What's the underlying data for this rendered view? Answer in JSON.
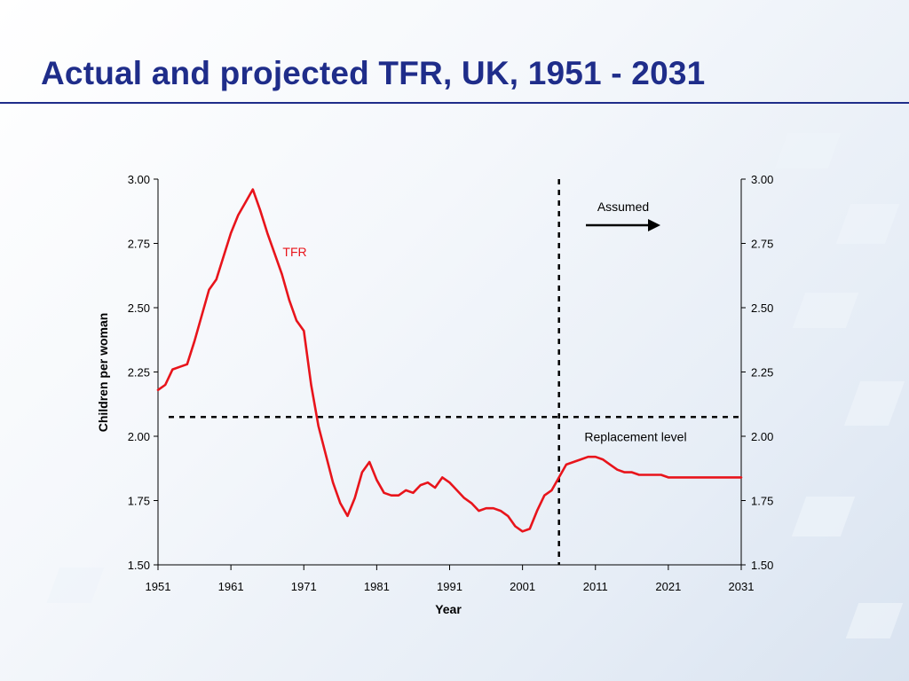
{
  "slide": {
    "title": "Actual and projected TFR, UK, 1951 - 2031"
  },
  "chart_data": {
    "type": "line",
    "xlabel": "Year",
    "ylabel": "Children per woman",
    "xlim": [
      1951,
      2031
    ],
    "ylim": [
      1.5,
      3.0
    ],
    "x_ticks": [
      1951,
      1961,
      1971,
      1981,
      1991,
      2001,
      2011,
      2021,
      2031
    ],
    "y_ticks": [
      "1.50",
      "1.75",
      "2.00",
      "2.25",
      "2.50",
      "2.75",
      "3.00"
    ],
    "secondary_y_axis": true,
    "grid": false,
    "series": [
      {
        "name": "TFR",
        "color": "#e8141b",
        "x": [
          1951,
          1952,
          1953,
          1954,
          1955,
          1956,
          1957,
          1958,
          1959,
          1960,
          1961,
          1962,
          1963,
          1964,
          1965,
          1966,
          1967,
          1968,
          1969,
          1970,
          1971,
          1972,
          1973,
          1974,
          1975,
          1976,
          1977,
          1978,
          1979,
          1980,
          1981,
          1982,
          1983,
          1984,
          1985,
          1986,
          1987,
          1988,
          1989,
          1990,
          1991,
          1992,
          1993,
          1994,
          1995,
          1996,
          1997,
          1998,
          1999,
          2000,
          2001,
          2002,
          2003,
          2004,
          2005,
          2006,
          2007,
          2008,
          2009,
          2010,
          2011,
          2012,
          2013,
          2014,
          2015,
          2016,
          2017,
          2018,
          2019,
          2020,
          2021,
          2022,
          2023,
          2024,
          2025,
          2026,
          2027,
          2028,
          2029,
          2030,
          2031
        ],
        "values": [
          2.18,
          2.2,
          2.26,
          2.27,
          2.28,
          2.37,
          2.47,
          2.57,
          2.61,
          2.7,
          2.79,
          2.86,
          2.91,
          2.96,
          2.88,
          2.79,
          2.71,
          2.63,
          2.53,
          2.45,
          2.41,
          2.2,
          2.04,
          1.93,
          1.82,
          1.74,
          1.69,
          1.76,
          1.86,
          1.9,
          1.83,
          1.78,
          1.77,
          1.77,
          1.79,
          1.78,
          1.81,
          1.82,
          1.8,
          1.84,
          1.82,
          1.79,
          1.76,
          1.74,
          1.71,
          1.72,
          1.72,
          1.71,
          1.69,
          1.65,
          1.63,
          1.64,
          1.71,
          1.77,
          1.79,
          1.84,
          1.89,
          1.9,
          1.91,
          1.92,
          1.92,
          1.91,
          1.89,
          1.87,
          1.86,
          1.86,
          1.85,
          1.85,
          1.85,
          1.85,
          1.84,
          1.84,
          1.84,
          1.84,
          1.84,
          1.84,
          1.84,
          1.84,
          1.84,
          1.84,
          1.84
        ]
      }
    ],
    "reference_lines": [
      {
        "orientation": "horizontal",
        "value": 2.075,
        "label": "Replacement level",
        "style": "dotted"
      },
      {
        "orientation": "vertical",
        "value": 2006,
        "style": "dotted"
      }
    ],
    "annotations": [
      {
        "text": "TFR",
        "color": "#e8141b"
      },
      {
        "text": "Assumed",
        "arrow": "right"
      }
    ]
  }
}
